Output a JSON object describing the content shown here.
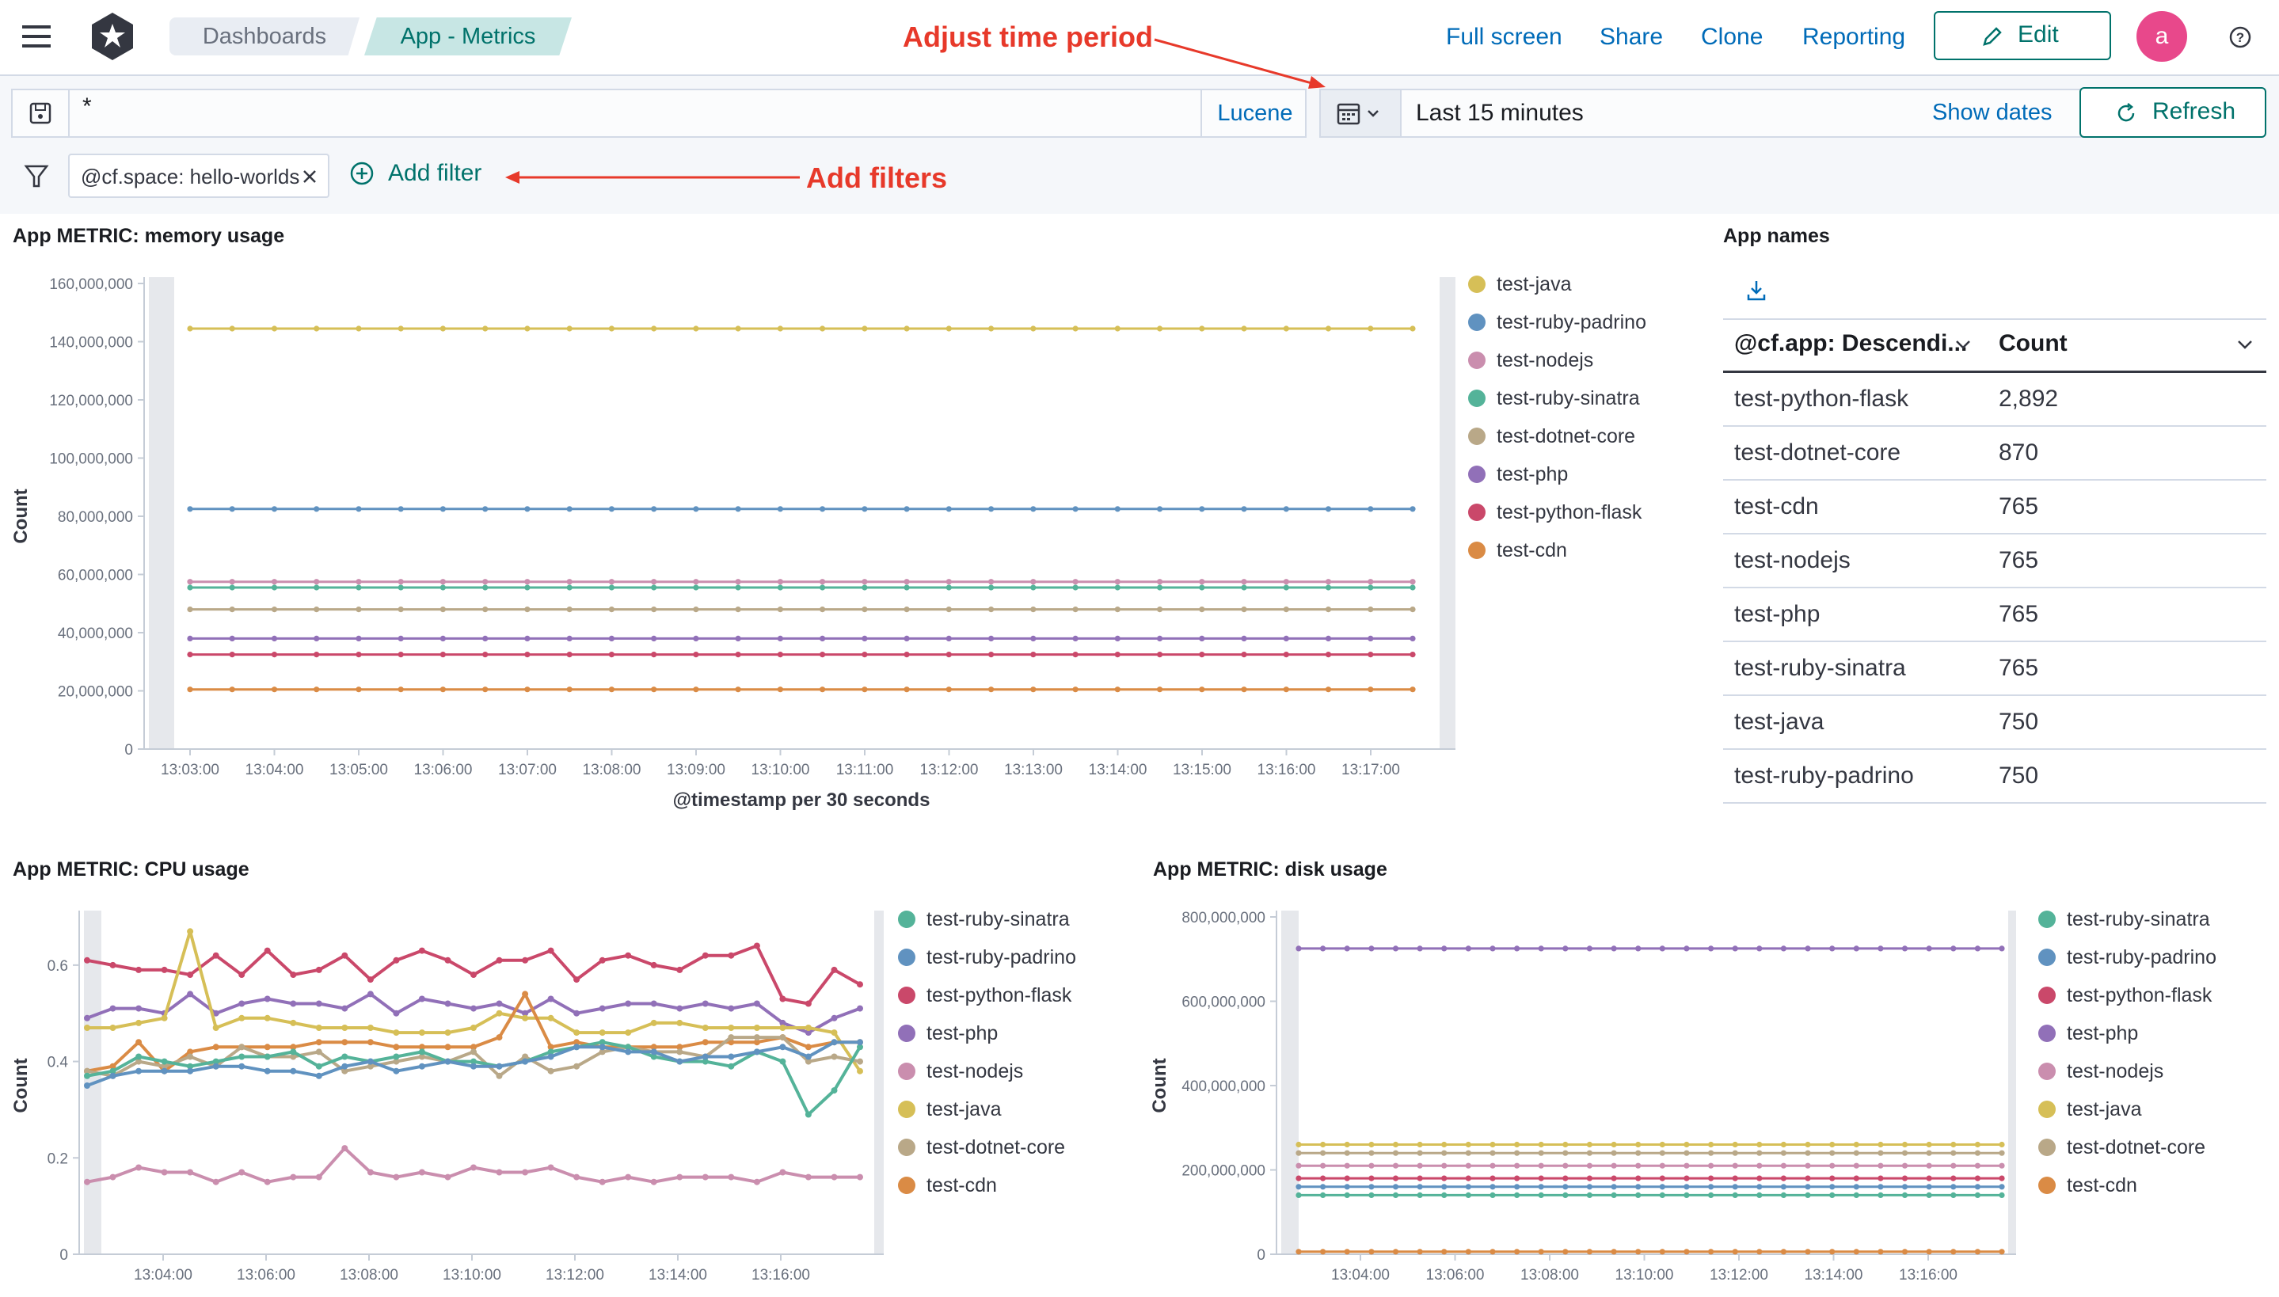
{
  "header": {
    "breadcrumbs": [
      "Dashboards",
      "App - Metrics"
    ],
    "actions": [
      "Full screen",
      "Share",
      "Clone",
      "Reporting"
    ],
    "edit_label": "Edit",
    "avatar_initial": "a",
    "colors": {
      "link": "#006bb8",
      "avatar_bg": "#e8488b",
      "accent": "#00726b"
    }
  },
  "query": {
    "value": "*",
    "language": "Lucene",
    "time_range": "Last 15 minutes",
    "show_dates": "Show dates",
    "refresh": "Refresh"
  },
  "filters": {
    "pills": [
      "@cf.space: hello-worlds"
    ],
    "add_label": "Add filter"
  },
  "annotations": {
    "time": "Adjust time period",
    "filters": "Add filters"
  },
  "panels": {
    "memory": "App METRIC: memory usage",
    "cpu": "App METRIC: CPU usage",
    "disk": "App METRIC: disk usage",
    "appnames": "App names"
  },
  "series_colors": {
    "test-java": "#d6bf57",
    "test-ruby-padrino": "#6092c0",
    "test-nodejs": "#d36086",
    "test-ruby-sinatra": "#54b399",
    "test-dotnet-core": "#b9a888",
    "test-php": "#9170b8",
    "test-python-flask": "#ca486a",
    "test-cdn": "#da8b45",
    "nodejs_light": "#ca8eae"
  },
  "app_table": {
    "columns": [
      "@cf.app: Descendi...",
      "Count"
    ],
    "rows": [
      {
        "app": "test-python-flask",
        "count": "2,892"
      },
      {
        "app": "test-dotnet-core",
        "count": "870"
      },
      {
        "app": "test-cdn",
        "count": "765"
      },
      {
        "app": "test-nodejs",
        "count": "765"
      },
      {
        "app": "test-php",
        "count": "765"
      },
      {
        "app": "test-ruby-sinatra",
        "count": "765"
      },
      {
        "app": "test-java",
        "count": "750"
      },
      {
        "app": "test-ruby-padrino",
        "count": "750"
      }
    ]
  },
  "chart_data": [
    {
      "id": "memory",
      "type": "line",
      "title": "App METRIC: memory usage",
      "xlabel": "@timestamp per 30 seconds",
      "ylabel": "Count",
      "x_ticks": [
        "13:03:00",
        "13:04:00",
        "13:05:00",
        "13:06:00",
        "13:07:00",
        "13:08:00",
        "13:09:00",
        "13:10:00",
        "13:11:00",
        "13:12:00",
        "13:13:00",
        "13:14:00",
        "13:15:00",
        "13:16:00",
        "13:17:00"
      ],
      "y_ticks": [
        "0",
        "20,000,000",
        "40,000,000",
        "60,000,000",
        "80,000,000",
        "100,000,000",
        "120,000,000",
        "140,000,000",
        "160,000,000"
      ],
      "ylim": [
        0,
        160000000
      ],
      "legend": [
        "test-java",
        "test-ruby-padrino",
        "test-nodejs",
        "test-ruby-sinatra",
        "test-dotnet-core",
        "test-php",
        "test-python-flask",
        "test-cdn"
      ],
      "series": [
        {
          "name": "test-java",
          "constant": 144500000
        },
        {
          "name": "test-ruby-padrino",
          "constant": 82500000
        },
        {
          "name": "test-nodejs",
          "constant": 57500000
        },
        {
          "name": "test-ruby-sinatra",
          "constant": 55500000
        },
        {
          "name": "test-dotnet-core",
          "constant": 48000000
        },
        {
          "name": "test-php",
          "constant": 38000000
        },
        {
          "name": "test-python-flask",
          "constant": 32500000
        },
        {
          "name": "test-cdn",
          "constant": 20500000
        }
      ]
    },
    {
      "id": "cpu",
      "type": "line",
      "title": "App METRIC: CPU usage",
      "ylabel": "Count",
      "x_ticks": [
        "13:04:00",
        "13:06:00",
        "13:08:00",
        "13:10:00",
        "13:12:00",
        "13:14:00",
        "13:16:00"
      ],
      "y_ticks": [
        "0",
        "0.2",
        "0.4",
        "0.6"
      ],
      "ylim": [
        0,
        0.7
      ],
      "legend": [
        "test-ruby-sinatra",
        "test-ruby-padrino",
        "test-python-flask",
        "test-php",
        "test-nodejs",
        "test-java",
        "test-dotnet-core",
        "test-cdn"
      ],
      "series": [
        {
          "name": "test-python-flask",
          "values": [
            0.61,
            0.6,
            0.59,
            0.59,
            0.58,
            0.62,
            0.58,
            0.63,
            0.58,
            0.59,
            0.62,
            0.57,
            0.61,
            0.63,
            0.61,
            0.58,
            0.61,
            0.61,
            0.63,
            0.57,
            0.61,
            0.62,
            0.6,
            0.59,
            0.62,
            0.62,
            0.64,
            0.53,
            0.52,
            0.59,
            0.56
          ]
        },
        {
          "name": "test-php",
          "values": [
            0.49,
            0.51,
            0.51,
            0.5,
            0.54,
            0.5,
            0.52,
            0.53,
            0.52,
            0.52,
            0.51,
            0.54,
            0.5,
            0.53,
            0.52,
            0.51,
            0.52,
            0.5,
            0.53,
            0.5,
            0.51,
            0.52,
            0.52,
            0.51,
            0.52,
            0.51,
            0.52,
            0.48,
            0.46,
            0.49,
            0.51
          ]
        },
        {
          "name": "test-java",
          "values": [
            0.47,
            0.47,
            0.48,
            0.49,
            0.67,
            0.47,
            0.49,
            0.49,
            0.48,
            0.47,
            0.47,
            0.47,
            0.46,
            0.46,
            0.46,
            0.47,
            0.5,
            0.49,
            0.49,
            0.46,
            0.46,
            0.46,
            0.48,
            0.48,
            0.47,
            0.47,
            0.47,
            0.47,
            0.47,
            0.46,
            0.38
          ]
        },
        {
          "name": "test-cdn",
          "values": [
            0.38,
            0.39,
            0.44,
            0.38,
            0.42,
            0.43,
            0.43,
            0.43,
            0.43,
            0.44,
            0.44,
            0.44,
            0.43,
            0.43,
            0.43,
            0.43,
            0.45,
            0.54,
            0.43,
            0.44,
            0.43,
            0.43,
            0.43,
            0.43,
            0.44,
            0.44,
            0.44,
            0.45,
            0.43,
            0.44,
            0.44
          ]
        },
        {
          "name": "test-dotnet-core",
          "values": [
            0.38,
            0.37,
            0.4,
            0.39,
            0.41,
            0.39,
            0.43,
            0.41,
            0.41,
            0.42,
            0.38,
            0.39,
            0.4,
            0.41,
            0.4,
            0.42,
            0.37,
            0.41,
            0.38,
            0.39,
            0.42,
            0.43,
            0.42,
            0.42,
            0.41,
            0.45,
            0.45,
            0.45,
            0.4,
            0.41,
            0.4
          ]
        },
        {
          "name": "test-ruby-sinatra",
          "values": [
            0.37,
            0.38,
            0.41,
            0.4,
            0.39,
            0.4,
            0.41,
            0.41,
            0.42,
            0.39,
            0.41,
            0.4,
            0.41,
            0.42,
            0.4,
            0.4,
            0.39,
            0.4,
            0.42,
            0.43,
            0.44,
            0.43,
            0.41,
            0.4,
            0.4,
            0.39,
            0.42,
            0.4,
            0.29,
            0.34,
            0.43
          ]
        },
        {
          "name": "test-ruby-padrino",
          "values": [
            0.35,
            0.37,
            0.38,
            0.38,
            0.38,
            0.39,
            0.39,
            0.38,
            0.38,
            0.37,
            0.39,
            0.4,
            0.38,
            0.39,
            0.4,
            0.39,
            0.39,
            0.4,
            0.41,
            0.43,
            0.43,
            0.42,
            0.42,
            0.4,
            0.41,
            0.41,
            0.42,
            0.43,
            0.41,
            0.44,
            0.44
          ]
        },
        {
          "name": "test-nodejs",
          "values": [
            0.15,
            0.16,
            0.18,
            0.17,
            0.17,
            0.15,
            0.17,
            0.15,
            0.16,
            0.16,
            0.22,
            0.17,
            0.16,
            0.17,
            0.16,
            0.18,
            0.17,
            0.17,
            0.18,
            0.16,
            0.15,
            0.16,
            0.15,
            0.16,
            0.16,
            0.16,
            0.15,
            0.17,
            0.16,
            0.16,
            0.16
          ]
        }
      ]
    },
    {
      "id": "disk",
      "type": "line",
      "title": "App METRIC: disk usage",
      "ylabel": "Count",
      "x_ticks": [
        "13:04:00",
        "13:06:00",
        "13:08:00",
        "13:10:00",
        "13:12:00",
        "13:14:00",
        "13:16:00"
      ],
      "y_ticks": [
        "0",
        "200,000,000",
        "400,000,000",
        "600,000,000",
        "800,000,000"
      ],
      "ylim": [
        0,
        800000000
      ],
      "legend": [
        "test-ruby-sinatra",
        "test-ruby-padrino",
        "test-python-flask",
        "test-php",
        "test-nodejs",
        "test-java",
        "test-dotnet-core",
        "test-cdn"
      ],
      "series": [
        {
          "name": "test-php",
          "constant": 725000000
        },
        {
          "name": "test-java",
          "constant": 260000000
        },
        {
          "name": "test-dotnet-core",
          "constant": 240000000
        },
        {
          "name": "test-nodejs",
          "constant": 210000000
        },
        {
          "name": "test-python-flask",
          "constant": 180000000
        },
        {
          "name": "test-ruby-padrino",
          "constant": 160000000
        },
        {
          "name": "test-ruby-sinatra",
          "constant": 140000000
        },
        {
          "name": "test-cdn",
          "constant": 6000000
        }
      ]
    }
  ]
}
